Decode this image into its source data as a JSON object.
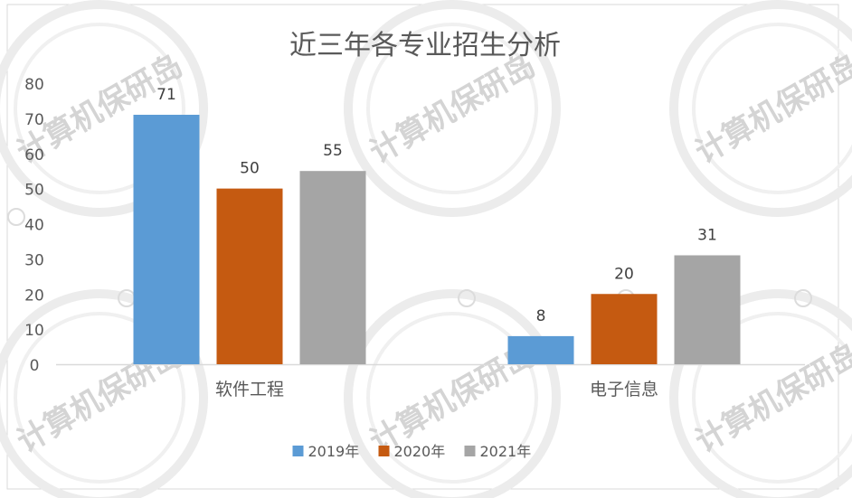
{
  "watermark": {
    "text": "计算机保研岛"
  },
  "chart_data": {
    "type": "bar",
    "title": "近三年各专业招生分析",
    "categories": [
      "软件工程",
      "电子信息"
    ],
    "series": [
      {
        "name": "2019年",
        "values": [
          71,
          8
        ],
        "color": "#5b9bd5"
      },
      {
        "name": "2020年",
        "values": [
          50,
          20
        ],
        "color": "#c55a11"
      },
      {
        "name": "2021年",
        "values": [
          55,
          31
        ],
        "color": "#a5a5a5"
      }
    ],
    "ylim": [
      0,
      80
    ],
    "yticks": [
      "0",
      "10",
      "20",
      "30",
      "40",
      "50",
      "60",
      "70",
      "80"
    ],
    "data_labels": [
      [
        "71",
        "8"
      ],
      [
        "50",
        "20"
      ],
      [
        "55",
        "31"
      ]
    ],
    "xlabel": "",
    "ylabel": "",
    "grid": false,
    "legend_position": "bottom"
  }
}
